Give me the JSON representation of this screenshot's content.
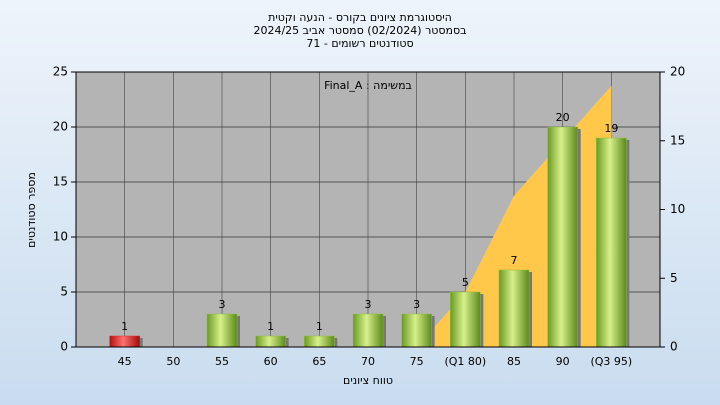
{
  "chart_data": {
    "type": "bar",
    "title": "היסטוגרמת ציונים בקורס - הנעה וקטית",
    "subtitle": [
      "בסמסטר  (02/2024)  סמסטר אביב 2024/25",
      "סטודנטים רשומים - 71"
    ],
    "annotation": "Final_A : במשימה",
    "x_label": "טווח ציונים",
    "y_label": "מספר סטודנטים",
    "categories": [
      "45",
      "50",
      "55",
      "60",
      "65",
      "70",
      "75",
      "(Q1 80)",
      "85",
      "90",
      "(Q3 95)"
    ],
    "series": [
      {
        "type": "bar",
        "colors": [
          "#e02828",
          "#8fbf3a",
          "#8fbf3a",
          "#8fbf3a",
          "#8fbf3a",
          "#8fbf3a",
          "#8fbf3a",
          "#8fbf3a",
          "#8fbf3a",
          "#8fbf3a",
          "#8fbf3a"
        ],
        "values": [
          1,
          0,
          3,
          1,
          1,
          3,
          3,
          5,
          7,
          20,
          19
        ]
      },
      {
        "type": "area",
        "axis": "y2",
        "color": "#ffc84a",
        "values": [
          null,
          null,
          null,
          null,
          null,
          null,
          0,
          4,
          11,
          15,
          19
        ]
      }
    ],
    "ylim": [
      0,
      25
    ],
    "yticks": [
      0,
      5,
      10,
      15,
      20,
      25
    ],
    "y2lim": [
      0,
      20
    ],
    "y2ticks": [
      0,
      5,
      10,
      15,
      20
    ],
    "grid": true
  }
}
